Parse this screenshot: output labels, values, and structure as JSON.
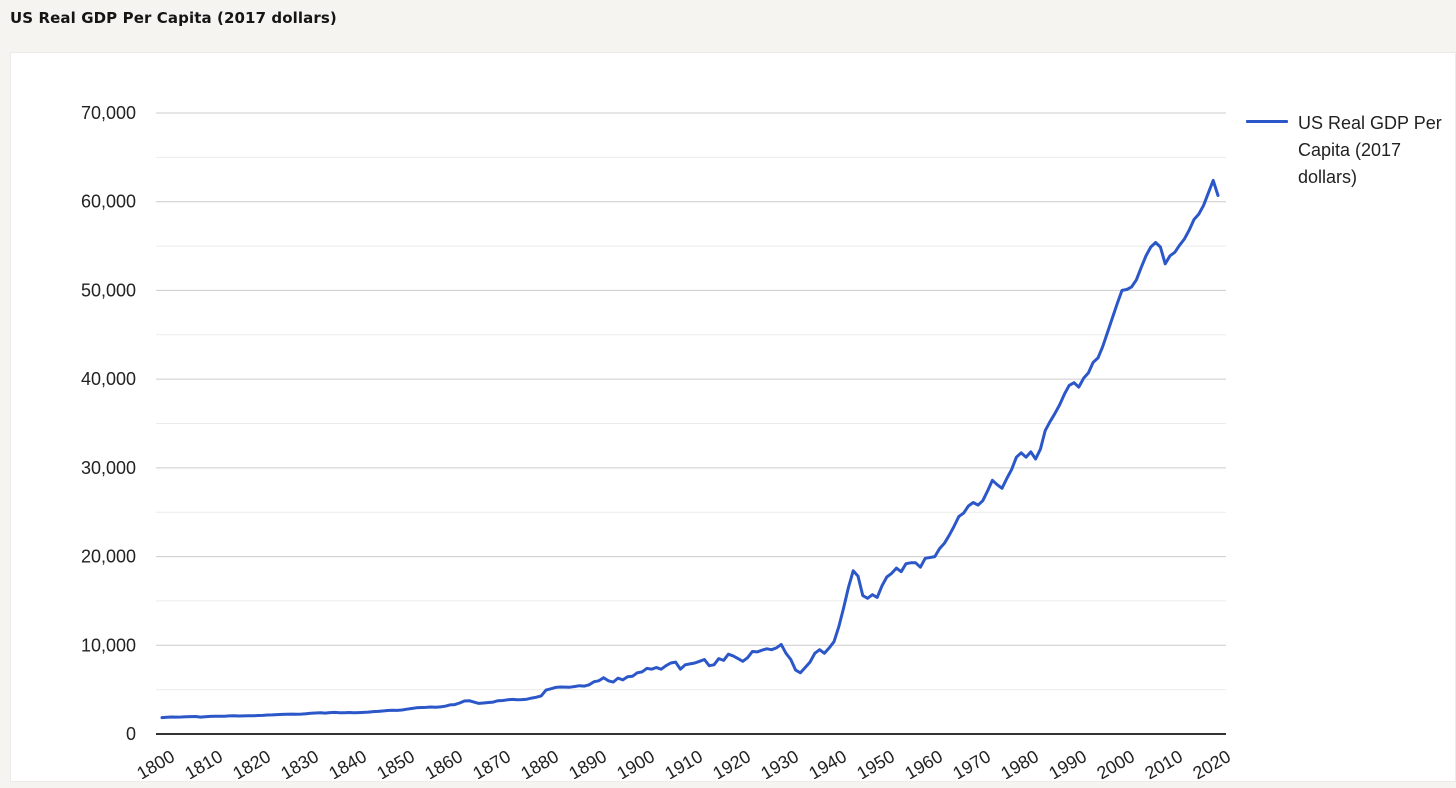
{
  "page": {
    "title": "US Real GDP Per Capita (2017 dollars)"
  },
  "colors": {
    "line": "#2b57c8",
    "grid_major": "#cccccc",
    "grid_minor": "#ebebeb",
    "axis": "#333333",
    "tick_text": "#222222",
    "page_background": "#f5f4f1",
    "card_background": "#ffffff"
  },
  "chart_data": {
    "type": "line",
    "title": "US Real GDP Per Capita (2017 dollars)",
    "xlabel": "",
    "ylabel": "",
    "ylim": [
      0,
      70000
    ],
    "y_major_step": 10000,
    "y_minor_step": 5000,
    "grid": true,
    "legend_position": "right",
    "x_start": 1800,
    "x_end": 2020,
    "x_step": 1,
    "x_tick_labels": [
      "1800",
      "1810",
      "1820",
      "1830",
      "1840",
      "1850",
      "1860",
      "1870",
      "1880",
      "1890",
      "1900",
      "1910",
      "1920",
      "1930",
      "1940",
      "1950",
      "1960",
      "1970",
      "1980",
      "1990",
      "2000",
      "2010",
      "2020"
    ],
    "y_tick_labels": [
      "0",
      "10,000",
      "20,000",
      "30,000",
      "40,000",
      "50,000",
      "60,000",
      "70,000"
    ],
    "series": [
      {
        "name": "US Real GDP Per Capita (2017 dollars)",
        "color": "#2b57c8",
        "values": [
          1850,
          1890,
          1920,
          1900,
          1920,
          1950,
          1960,
          1970,
          1900,
          1940,
          1980,
          2000,
          1990,
          2010,
          2040,
          2060,
          2030,
          2040,
          2060,
          2050,
          2080,
          2100,
          2140,
          2150,
          2190,
          2210,
          2230,
          2240,
          2230,
          2240,
          2280,
          2330,
          2370,
          2390,
          2360,
          2410,
          2430,
          2400,
          2390,
          2420,
          2400,
          2410,
          2430,
          2470,
          2520,
          2550,
          2590,
          2650,
          2680,
          2660,
          2710,
          2790,
          2870,
          2950,
          2990,
          3000,
          3040,
          3010,
          3050,
          3130,
          3280,
          3310,
          3500,
          3720,
          3750,
          3600,
          3450,
          3500,
          3550,
          3600,
          3750,
          3780,
          3850,
          3900,
          3850,
          3880,
          3920,
          4050,
          4150,
          4300,
          4950,
          5100,
          5250,
          5300,
          5290,
          5270,
          5350,
          5450,
          5400,
          5550,
          5900,
          6000,
          6350,
          6000,
          5850,
          6300,
          6100,
          6450,
          6500,
          6900,
          7000,
          7400,
          7300,
          7500,
          7300,
          7700,
          8000,
          8100,
          7300,
          7800,
          7900,
          8000,
          8200,
          8400,
          7700,
          7800,
          8500,
          8300,
          9000,
          8800,
          8500,
          8200,
          8600,
          9300,
          9250,
          9450,
          9600,
          9500,
          9700,
          10100,
          9100,
          8400,
          7200,
          6900,
          7500,
          8100,
          9100,
          9500,
          9100,
          9700,
          10400,
          12100,
          14200,
          16500,
          18400,
          17800,
          15600,
          15300,
          15700,
          15400,
          16700,
          17700,
          18100,
          18700,
          18300,
          19200,
          19300,
          19300,
          18800,
          19800,
          19900,
          20000,
          20900,
          21500,
          22400,
          23400,
          24500,
          24900,
          25700,
          26100,
          25800,
          26300,
          27400,
          28600,
          28100,
          27700,
          28800,
          29800,
          31200,
          31700,
          31200,
          31800,
          31000,
          32100,
          34200,
          35200,
          36100,
          37100,
          38300,
          39300,
          39600,
          39100,
          40100,
          40700,
          41900,
          42400,
          43700,
          45300,
          46900,
          48500,
          50000,
          50100,
          50400,
          51200,
          52600,
          53900,
          54900,
          55400,
          54900,
          53000,
          53900,
          54300,
          55100,
          55800,
          56800,
          58000,
          58600,
          59600,
          61000,
          62400,
          60700
        ]
      }
    ]
  }
}
